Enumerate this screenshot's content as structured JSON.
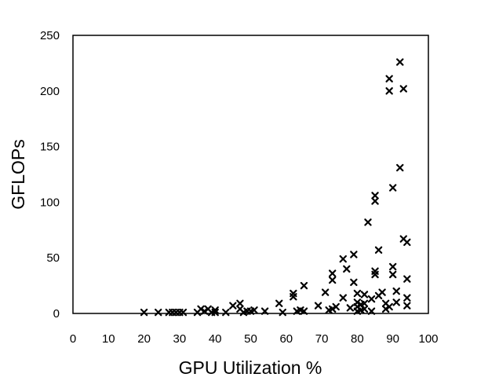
{
  "chart_data": {
    "type": "scatter",
    "title": "",
    "xlabel": "GPU Utilization %",
    "ylabel": "GFLOPs",
    "xlim": [
      0,
      100
    ],
    "ylim": [
      0,
      250
    ],
    "xticks": [
      "0",
      "10",
      "20",
      "30",
      "40",
      "50",
      "60",
      "70",
      "80",
      "90",
      "100"
    ],
    "yticks": [
      "0",
      "50",
      "100",
      "150",
      "200",
      "250"
    ],
    "x_tick_values": [
      0,
      10,
      20,
      30,
      40,
      50,
      60,
      70,
      80,
      90,
      100
    ],
    "y_tick_values": [
      0,
      50,
      100,
      150,
      200,
      250
    ],
    "grid": false,
    "marker": "x",
    "marker_color": "#000000",
    "series": [
      {
        "points": [
          [
            20,
            1
          ],
          [
            24,
            1
          ],
          [
            27,
            1
          ],
          [
            28,
            1
          ],
          [
            29,
            1
          ],
          [
            30,
            1
          ],
          [
            31,
            1
          ],
          [
            35,
            1
          ],
          [
            36,
            4
          ],
          [
            37,
            2
          ],
          [
            38,
            4
          ],
          [
            39,
            1
          ],
          [
            40,
            3
          ],
          [
            40,
            1
          ],
          [
            43,
            1
          ],
          [
            45,
            7
          ],
          [
            47,
            9
          ],
          [
            47,
            4
          ],
          [
            48,
            1
          ],
          [
            49,
            2
          ],
          [
            50,
            2
          ],
          [
            51,
            3
          ],
          [
            54,
            2
          ],
          [
            58,
            9
          ],
          [
            59,
            1
          ],
          [
            62,
            15
          ],
          [
            62,
            18
          ],
          [
            63,
            2
          ],
          [
            64,
            3
          ],
          [
            65,
            25
          ],
          [
            65,
            2
          ],
          [
            69,
            7
          ],
          [
            71,
            19
          ],
          [
            72,
            3
          ],
          [
            73,
            36
          ],
          [
            73,
            30
          ],
          [
            73,
            4
          ],
          [
            74,
            6
          ],
          [
            76,
            49
          ],
          [
            76,
            14
          ],
          [
            77,
            40
          ],
          [
            78,
            5
          ],
          [
            79,
            53
          ],
          [
            79,
            28
          ],
          [
            80,
            18
          ],
          [
            80,
            10
          ],
          [
            80,
            6
          ],
          [
            80,
            2
          ],
          [
            81,
            8
          ],
          [
            81,
            3
          ],
          [
            82,
            9
          ],
          [
            82,
            4
          ],
          [
            82,
            17
          ],
          [
            83,
            82
          ],
          [
            84,
            13
          ],
          [
            84,
            2
          ],
          [
            85,
            106
          ],
          [
            85,
            101
          ],
          [
            85,
            38
          ],
          [
            85,
            35
          ],
          [
            86,
            16
          ],
          [
            86,
            57
          ],
          [
            87,
            19
          ],
          [
            88,
            4
          ],
          [
            88,
            9
          ],
          [
            89,
            211
          ],
          [
            89,
            200
          ],
          [
            89,
            6
          ],
          [
            90,
            113
          ],
          [
            90,
            42
          ],
          [
            90,
            35
          ],
          [
            91,
            20
          ],
          [
            91,
            10
          ],
          [
            92,
            226
          ],
          [
            92,
            131
          ],
          [
            93,
            202
          ],
          [
            93,
            67
          ],
          [
            94,
            64
          ],
          [
            94,
            31
          ],
          [
            94,
            14
          ],
          [
            94,
            7
          ]
        ]
      }
    ]
  }
}
